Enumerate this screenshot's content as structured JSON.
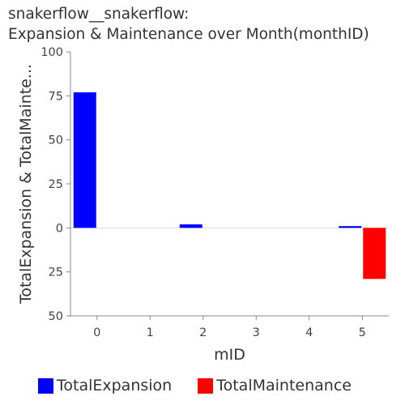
{
  "title": {
    "line1": "snakerflow__snakerflow:",
    "line2": "Expansion & Maintenance over Month(monthID)"
  },
  "colors": {
    "expansion": "#0000ff",
    "maintenance": "#ff0000",
    "axis": "#888888",
    "zero_line": "#dddddd"
  },
  "chart_data": {
    "type": "bar",
    "title": "snakerflow__snakerflow: Expansion & Maintenance over Month(monthID)",
    "xlabel": "mID",
    "ylabel": "TotalExpansion & TotalMainte...",
    "categories": [
      "0",
      "1",
      "2",
      "3",
      "4",
      "5"
    ],
    "ylim": [
      -50,
      100
    ],
    "y_ticks": [
      100,
      75,
      50,
      25,
      0,
      -25,
      -50
    ],
    "y_tick_labels": [
      "100",
      "75",
      "50",
      "25",
      "0",
      "25",
      "50"
    ],
    "series": [
      {
        "name": "TotalExpansion",
        "values": [
          77,
          0,
          2,
          0,
          0,
          1
        ]
      },
      {
        "name": "TotalMaintenance",
        "values": [
          0,
          0,
          0,
          0,
          0,
          -29
        ]
      }
    ],
    "legend": "bottom",
    "grid": false
  }
}
